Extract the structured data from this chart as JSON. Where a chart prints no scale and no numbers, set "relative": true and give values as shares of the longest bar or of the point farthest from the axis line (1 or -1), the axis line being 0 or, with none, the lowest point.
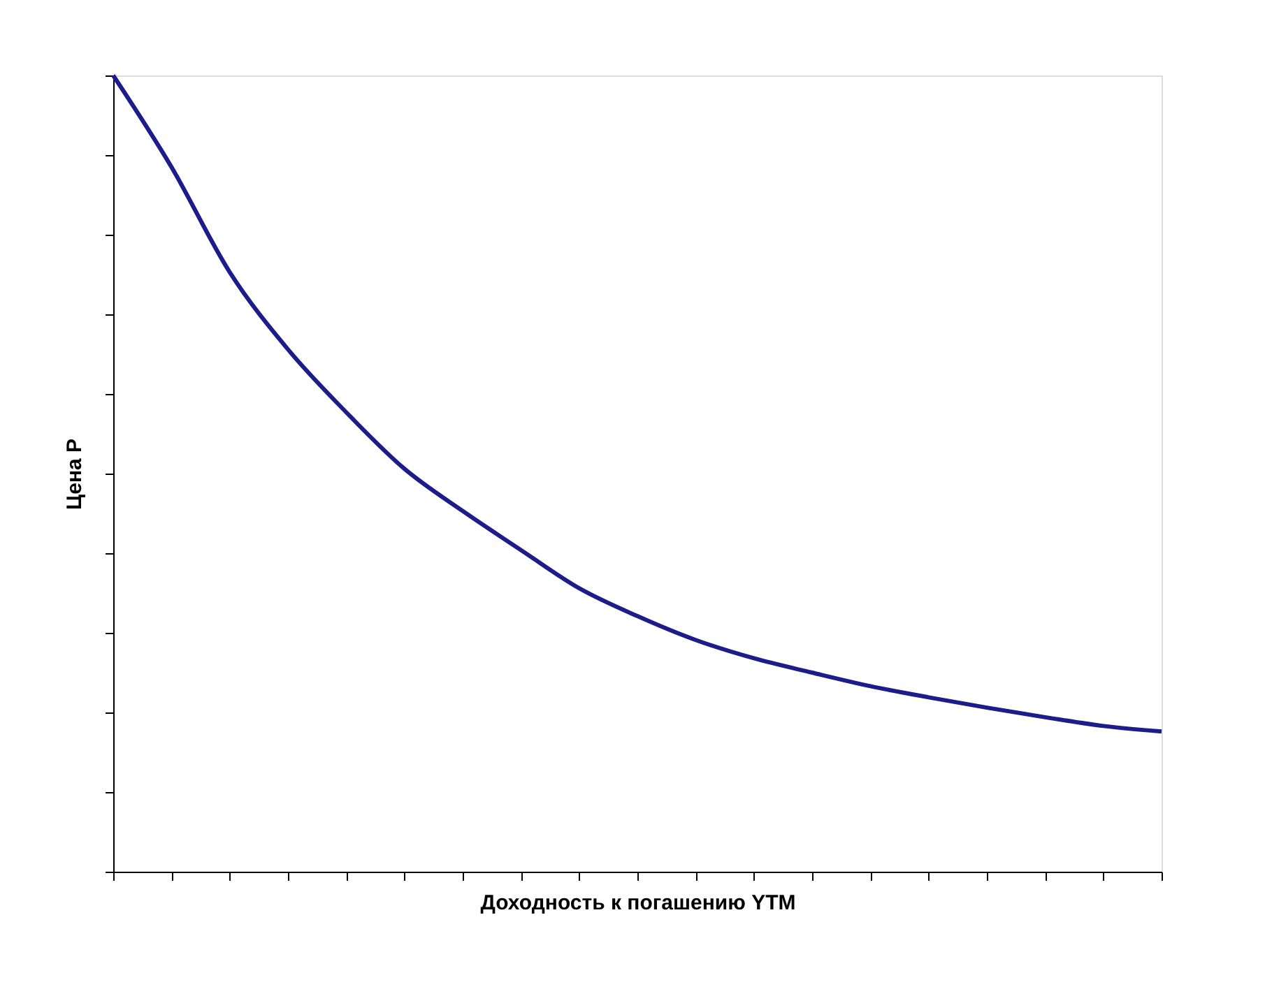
{
  "chart_data": {
    "type": "line",
    "relative": true,
    "xlabel": "Доходность к погашению YTM",
    "ylabel": "Цена P",
    "categories": [
      null,
      null,
      null,
      null,
      null,
      null,
      null,
      null,
      null,
      null,
      null,
      null,
      null,
      null,
      null,
      null,
      null,
      null,
      null
    ],
    "series": [
      {
        "color": "#1c1c8a",
        "values": [
          1,
          0.885,
          0.753,
          0.656,
          0.577,
          0.506,
          0.453,
          0.404,
          0.356,
          0.321,
          0.291,
          0.268,
          0.25,
          0.233,
          0.219,
          0.206,
          0.194,
          0.183,
          0.176
        ]
      }
    ],
    "grid": false,
    "marker": "none",
    "line_style": "solid"
  }
}
